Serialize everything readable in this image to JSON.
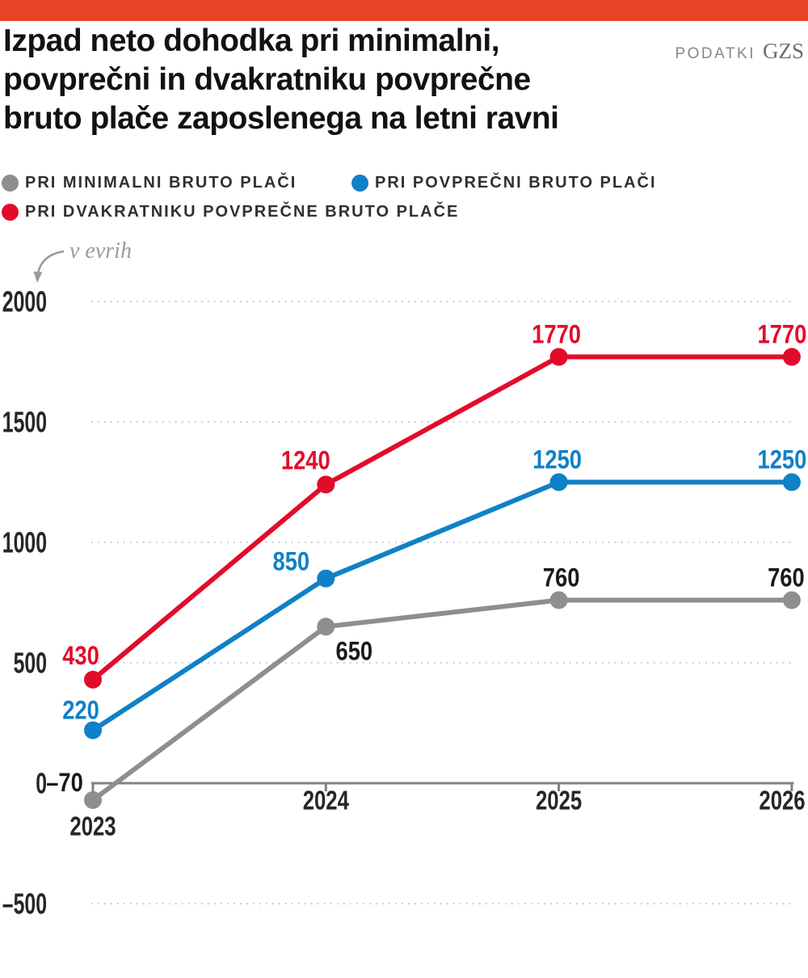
{
  "page": {
    "background": "#ffffff",
    "accent_bar_color": "#e94326"
  },
  "header": {
    "title_lines": [
      "Izpad neto dohodka pri minimalni,",
      "povprečni in dvakratniku povprečne",
      "bruto plače zaposlenega na letni ravni"
    ],
    "source_label": "PODATKI",
    "source_org": "GZS"
  },
  "legend": {
    "items": [
      {
        "label": "PRI MINIMALNI BRUTO PLAČI",
        "color": "#8e8e8e"
      },
      {
        "label": "PRI POVPREČNI BRUTO PLAČI",
        "color": "#0f81c6"
      },
      {
        "label": "PRI DVAKRATNIKU POVPREČNE BRUTO PLAČE",
        "color": "#e30b2a"
      }
    ]
  },
  "chart_data": {
    "type": "line",
    "title": "Izpad neto dohodka pri minimalni, povprečni in dvakratniku povprečne bruto plače zaposlenega na letni ravni",
    "unit_label": "v evrih",
    "x_labels": [
      "2023",
      "2024",
      "2025",
      "2026"
    ],
    "x_values": [
      2023,
      2024,
      2025,
      2026
    ],
    "ylim": [
      -500,
      2000
    ],
    "grid": "dotted-horizontal",
    "legend_position": "top",
    "y_ticks": [
      {
        "value": 2000,
        "label": "2000"
      },
      {
        "value": 1500,
        "label": "1500"
      },
      {
        "value": 1000,
        "label": "1000"
      },
      {
        "value": 500,
        "label": "500"
      },
      {
        "value": 0,
        "label": "0"
      },
      {
        "value": -500,
        "label": "–500"
      }
    ],
    "x_label_dy": [
      53,
      21,
      21,
      21
    ],
    "series": [
      {
        "name": "PRI MINIMALNI BRUTO PLAČI",
        "color": "#8e8e8e",
        "label_color": "#1a1a1a",
        "values": [
          -70,
          650,
          760,
          760
        ],
        "point_labels": [
          "–70",
          "650",
          "760",
          "760"
        ],
        "label_dx": [
          -35,
          35,
          3,
          -7
        ],
        "label_dy": [
          -22,
          30,
          -28,
          -28
        ]
      },
      {
        "name": "PRI POVPREČNI BRUTO PLAČI",
        "color": "#0f81c6",
        "label_color": "#0f81c6",
        "values": [
          220,
          850,
          1250,
          1250
        ],
        "point_labels": [
          "220",
          "850",
          "1250",
          "1250"
        ],
        "label_dx": [
          -15,
          -43,
          -2,
          -12
        ],
        "label_dy": [
          -25,
          -21,
          -28,
          -28
        ]
      },
      {
        "name": "PRI DVAKRATNIKU POVPREČNE BRUTO PLAČE",
        "color": "#e30b2a",
        "label_color": "#e30b2a",
        "values": [
          430,
          1240,
          1770,
          1770
        ],
        "point_labels": [
          "430",
          "1240",
          "1770",
          "1770"
        ],
        "label_dx": [
          -15,
          -25,
          -3,
          -12
        ],
        "label_dy": [
          -30,
          -30,
          -28,
          -28
        ]
      }
    ]
  }
}
